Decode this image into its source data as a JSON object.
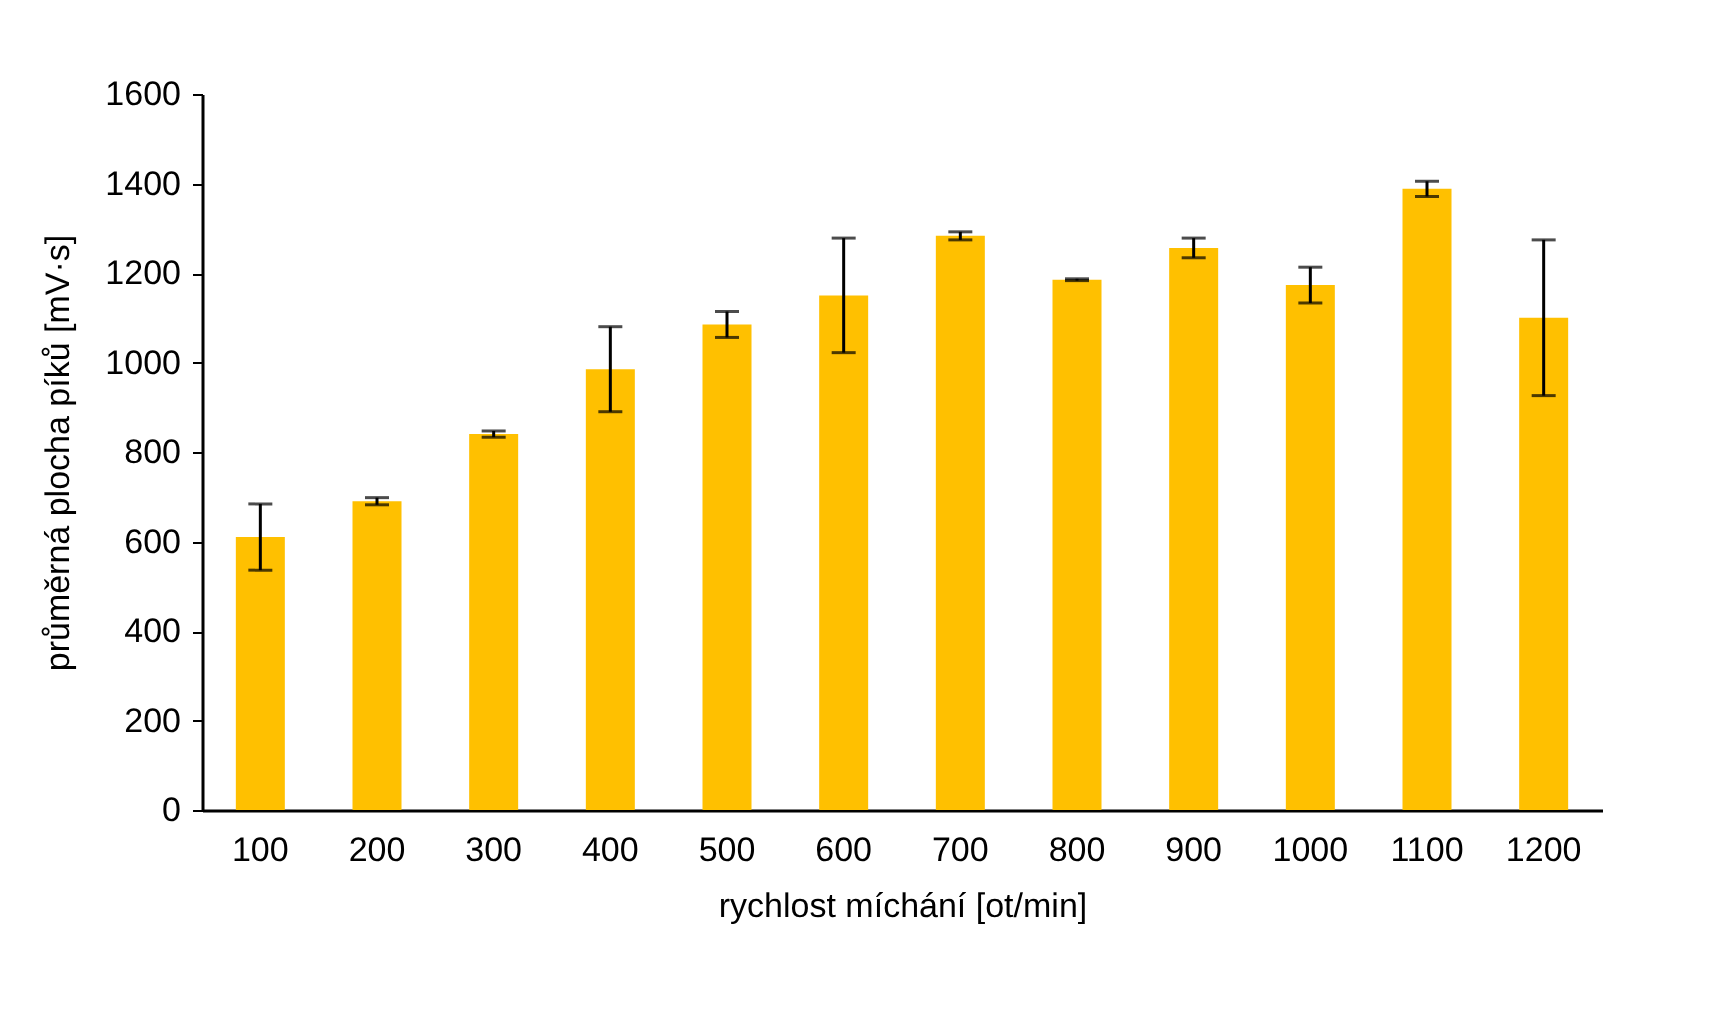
{
  "chart_data": {
    "type": "bar",
    "xlabel": "rychlost míchání [ot/min]",
    "ylabel": "průměrná plocha píků [mV·s]",
    "categories": [
      "100",
      "200",
      "300",
      "400",
      "500",
      "600",
      "700",
      "800",
      "900",
      "1000",
      "1100",
      "1200"
    ],
    "values": [
      610,
      690,
      840,
      985,
      1085,
      1150,
      1283,
      1185,
      1256,
      1173,
      1388,
      1100
    ],
    "errors": [
      74,
      8,
      7,
      95,
      29,
      128,
      9,
      2,
      22,
      40,
      17,
      174
    ],
    "color": "#ffc000",
    "ylim": [
      0,
      1600
    ],
    "yticks": [
      0,
      200,
      400,
      600,
      800,
      1000,
      1200,
      1400,
      1600
    ],
    "grid": false
  }
}
